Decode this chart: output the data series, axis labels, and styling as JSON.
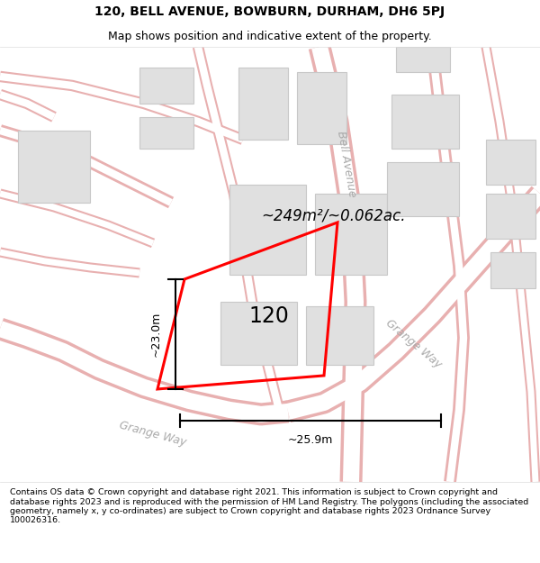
{
  "title_line1": "120, BELL AVENUE, BOWBURN, DURHAM, DH6 5PJ",
  "title_line2": "Map shows position and indicative extent of the property.",
  "area_text": "~249m²/~0.062ac.",
  "label_120": "120",
  "dim_vertical": "~23.0m",
  "dim_horizontal": "~25.9m",
  "street_bell": "Bell Avenue",
  "street_grange1": "Grange Way",
  "street_grange2": "Grange Way",
  "footer": "Contains OS data © Crown copyright and database right 2021. This information is subject to Crown copyright and database rights 2023 and is reproduced with the permission of HM Land Registry. The polygons (including the associated geometry, namely x, y co-ordinates) are subject to Crown copyright and database rights 2023 Ordnance Survey 100026316.",
  "bg_color": "#ffffff",
  "map_bg": "#f7f6f4",
  "road_edge": "#e8b0b0",
  "road_fill": "#ffffff",
  "building_fill": "#e0e0e0",
  "building_edge": "#c8c8c8",
  "property_stroke": "#ff0000",
  "dim_color": "#000000",
  "text_color": "#000000",
  "street_color": "#aaaaaa",
  "title_fontsize": 10,
  "subtitle_fontsize": 9,
  "footer_fontsize": 6.8
}
